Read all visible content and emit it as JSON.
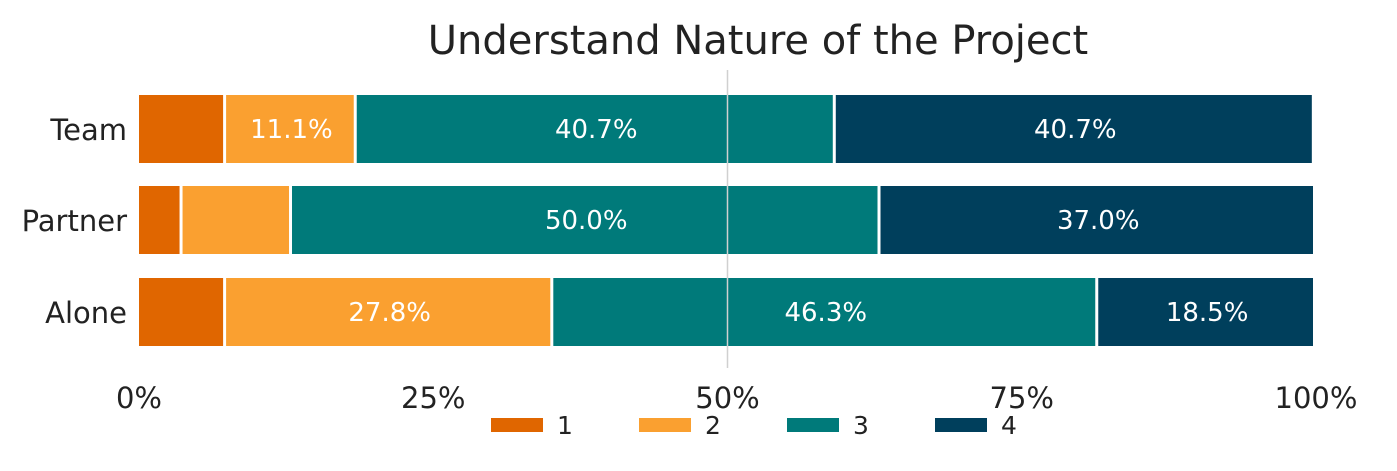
{
  "chart_data": {
    "type": "bar",
    "orientation": "horizontal",
    "stacked": true,
    "title": "Understand Nature of the Project",
    "xlabel": "",
    "ylabel": "",
    "categories": [
      "Team",
      "Partner",
      "Alone"
    ],
    "xlim": [
      0,
      100
    ],
    "xticks": [
      0,
      25,
      50,
      75,
      100
    ],
    "xtick_labels": [
      "0%",
      "25%",
      "50%",
      "75%",
      "100%"
    ],
    "grid": false,
    "reference_line_x": 50,
    "legend_position": "bottom-center",
    "series": [
      {
        "name": "1",
        "color": "#E06600",
        "values": [
          7.4,
          3.7,
          7.4
        ],
        "labels": [
          "",
          "",
          ""
        ]
      },
      {
        "name": "2",
        "color": "#FAA030",
        "values": [
          11.1,
          9.3,
          27.8
        ],
        "labels": [
          "11.1%",
          "",
          "27.8%"
        ]
      },
      {
        "name": "3",
        "color": "#007A7A",
        "values": [
          40.7,
          50.0,
          46.3
        ],
        "labels": [
          "40.7%",
          "50.0%",
          "46.3%"
        ]
      },
      {
        "name": "4",
        "color": "#003F5C",
        "values": [
          40.7,
          37.0,
          18.5
        ],
        "labels": [
          "40.7%",
          "37.0%",
          "18.5%"
        ]
      }
    ]
  }
}
